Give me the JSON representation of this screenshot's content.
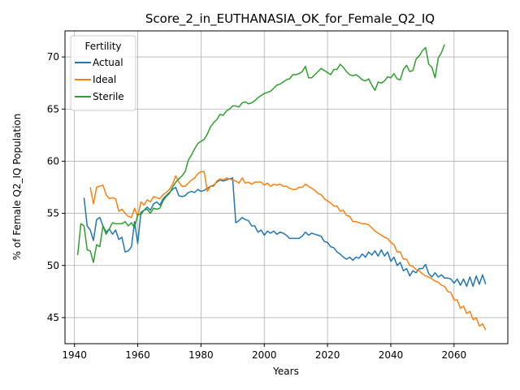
{
  "chart_data": {
    "type": "line",
    "title": "Score_2_in_EUTHANASIA_OK_for_Female_Q2_IQ",
    "xlabel": "Years",
    "ylabel": "% of Female Q2_IQ Population",
    "xlim": [
      1937,
      2077
    ],
    "ylim": [
      42.5,
      72.5
    ],
    "xticks": [
      1940,
      1960,
      1980,
      2000,
      2020,
      2040,
      2060
    ],
    "yticks": [
      45,
      50,
      55,
      60,
      65,
      70
    ],
    "grid": true,
    "legend": {
      "title": "Fertility",
      "placement": "top-left"
    },
    "series": [
      {
        "name": "Actual",
        "color": "#1f77b4",
        "x": [
          1943,
          1944,
          1945,
          1946,
          1947,
          1948,
          1949,
          1950,
          1951,
          1952,
          1953,
          1954,
          1955,
          1956,
          1957,
          1958,
          1959,
          1960,
          1961,
          1962,
          1963,
          1964,
          1965,
          1966,
          1967,
          1968,
          1969,
          1970,
          1971,
          1972,
          1973,
          1974,
          1975,
          1976,
          1977,
          1978,
          1979,
          1980,
          1981,
          1982,
          1983,
          1984,
          1985,
          1986,
          1987,
          1988,
          1989,
          1990,
          1991,
          1992,
          1993,
          1994,
          1995,
          1996,
          1997,
          1998,
          1999,
          2000,
          2001,
          2002,
          2003,
          2004,
          2005,
          2006,
          2007,
          2008,
          2009,
          2010,
          2011,
          2012,
          2013,
          2014,
          2015,
          2016,
          2017,
          2018,
          2019,
          2020,
          2021,
          2022,
          2023,
          2024,
          2025,
          2026,
          2027,
          2028,
          2029,
          2030,
          2031,
          2032,
          2033,
          2034,
          2035,
          2036,
          2037,
          2038,
          2039,
          2040,
          2041,
          2042,
          2043,
          2044,
          2045,
          2046,
          2047,
          2048,
          2049,
          2050,
          2051,
          2052,
          2053,
          2054,
          2055,
          2056,
          2057,
          2058,
          2059,
          2060,
          2061,
          2062,
          2063,
          2064,
          2065,
          2066,
          2067,
          2068,
          2069,
          2070
        ],
        "y": [
          56.5,
          53.8,
          53.4,
          52.4,
          54.4,
          54.6,
          53.8,
          53.2,
          53.5,
          53.0,
          53.4,
          52.5,
          52.7,
          51.3,
          51.4,
          51.8,
          54.2,
          52.1,
          55.1,
          55.3,
          55.6,
          55.3,
          55.9,
          56.1,
          55.8,
          56.4,
          56.7,
          57.0,
          57.3,
          57.5,
          56.7,
          56.6,
          56.7,
          57.0,
          57.1,
          57.0,
          57.3,
          57.1,
          57.2,
          57.4,
          57.6,
          57.7,
          58.0,
          58.2,
          58.1,
          58.2,
          58.3,
          58.4,
          54.1,
          54.3,
          54.6,
          54.4,
          54.3,
          53.8,
          53.8,
          53.2,
          53.4,
          52.9,
          53.3,
          53.1,
          53.3,
          53.0,
          53.2,
          53.1,
          52.9,
          52.6,
          52.6,
          52.6,
          52.6,
          52.8,
          53.2,
          52.9,
          53.1,
          53.0,
          52.9,
          52.8,
          52.3,
          52.2,
          51.8,
          51.7,
          51.3,
          51.1,
          50.8,
          50.6,
          50.8,
          50.5,
          50.8,
          50.7,
          51.1,
          50.8,
          51.3,
          51.0,
          51.4,
          50.9,
          51.5,
          50.9,
          51.3,
          50.4,
          50.8,
          50.0,
          50.3,
          49.5,
          49.7,
          49.0,
          49.5,
          49.3,
          49.7,
          49.7,
          50.1,
          49.2,
          48.9,
          49.3,
          48.9,
          49.1,
          48.8,
          48.8,
          48.7,
          48.3,
          48.7,
          48.1,
          48.7,
          48.0,
          48.9,
          48.0,
          49.0,
          48.2,
          49.1,
          48.2
        ]
      },
      {
        "name": "Ideal",
        "color": "#ff7f0e",
        "x": [
          1945,
          1946,
          1947,
          1948,
          1949,
          1950,
          1951,
          1952,
          1953,
          1954,
          1955,
          1956,
          1957,
          1958,
          1959,
          1960,
          1961,
          1962,
          1963,
          1964,
          1965,
          1966,
          1967,
          1968,
          1969,
          1970,
          1971,
          1972,
          1973,
          1974,
          1975,
          1976,
          1977,
          1978,
          1979,
          1980,
          1981,
          1982,
          1983,
          1984,
          1985,
          1986,
          1987,
          1988,
          1989,
          1990,
          1991,
          1992,
          1993,
          1994,
          1995,
          1996,
          1997,
          1998,
          1999,
          2000,
          2001,
          2002,
          2003,
          2004,
          2005,
          2006,
          2007,
          2008,
          2009,
          2010,
          2011,
          2012,
          2013,
          2014,
          2015,
          2016,
          2017,
          2018,
          2019,
          2020,
          2021,
          2022,
          2023,
          2024,
          2025,
          2026,
          2027,
          2028,
          2029,
          2030,
          2031,
          2032,
          2033,
          2034,
          2035,
          2036,
          2037,
          2038,
          2039,
          2040,
          2041,
          2042,
          2043,
          2044,
          2045,
          2046,
          2047,
          2048,
          2049,
          2050,
          2051,
          2052,
          2053,
          2054,
          2055,
          2056,
          2057,
          2058,
          2059,
          2060,
          2061,
          2062,
          2063,
          2064,
          2065,
          2066,
          2067,
          2068,
          2069,
          2070
        ],
        "y": [
          57.5,
          55.9,
          57.5,
          57.6,
          57.7,
          56.8,
          56.4,
          56.5,
          56.4,
          55.2,
          55.4,
          55.0,
          54.7,
          54.6,
          55.5,
          54.7,
          56.1,
          55.8,
          56.3,
          56.1,
          56.6,
          56.5,
          56.4,
          56.8,
          57.0,
          57.3,
          57.8,
          58.6,
          58.0,
          57.6,
          57.6,
          57.9,
          58.2,
          58.4,
          58.8,
          59.0,
          59.0,
          57.1,
          57.6,
          57.6,
          58.1,
          58.3,
          58.2,
          58.4,
          58.3,
          58.2,
          58.1,
          57.9,
          58.4,
          57.9,
          58.0,
          57.8,
          58.0,
          58.0,
          58.0,
          57.7,
          57.9,
          57.6,
          57.8,
          57.7,
          57.8,
          57.6,
          57.6,
          57.4,
          57.3,
          57.3,
          57.5,
          57.5,
          57.8,
          57.6,
          57.4,
          57.2,
          56.9,
          56.8,
          56.4,
          56.2,
          56.0,
          55.7,
          55.7,
          55.2,
          55.3,
          54.8,
          54.7,
          54.2,
          54.2,
          54.1,
          54.0,
          54.0,
          53.9,
          53.6,
          53.3,
          53.1,
          52.9,
          52.7,
          52.6,
          52.2,
          52.0,
          51.3,
          51.3,
          50.6,
          50.6,
          50.0,
          49.9,
          49.6,
          49.5,
          49.2,
          49.0,
          48.9,
          48.7,
          48.5,
          48.4,
          48.1,
          48.0,
          47.5,
          47.4,
          46.7,
          46.7,
          45.9,
          46.1,
          45.4,
          45.6,
          44.8,
          45.0,
          44.2,
          44.4,
          43.8
        ]
      },
      {
        "name": "Sterile",
        "color": "#2ca02c",
        "x": [
          1941,
          1942,
          1943,
          1944,
          1945,
          1946,
          1947,
          1948,
          1949,
          1950,
          1951,
          1952,
          1953,
          1954,
          1955,
          1956,
          1957,
          1958,
          1959,
          1960,
          1961,
          1962,
          1963,
          1964,
          1965,
          1966,
          1967,
          1968,
          1969,
          1970,
          1971,
          1972,
          1973,
          1974,
          1975,
          1976,
          1977,
          1978,
          1979,
          1980,
          1981,
          1982,
          1983,
          1984,
          1985,
          1986,
          1987,
          1988,
          1989,
          1990,
          1991,
          1992,
          1993,
          1994,
          1995,
          1996,
          1997,
          1998,
          1999,
          2000,
          2001,
          2002,
          2003,
          2004,
          2005,
          2006,
          2007,
          2008,
          2009,
          2010,
          2011,
          2012,
          2013,
          2014,
          2015,
          2016,
          2017,
          2018,
          2019,
          2020,
          2021,
          2022,
          2023,
          2024,
          2025,
          2026,
          2027,
          2028,
          2029,
          2030,
          2031,
          2032,
          2033,
          2034,
          2035,
          2036,
          2037,
          2038,
          2039,
          2040,
          2041,
          2042,
          2043,
          2044,
          2045,
          2046,
          2047,
          2048,
          2049,
          2050,
          2051,
          2052,
          2053,
          2054,
          2055,
          2056,
          2057
        ],
        "y": [
          51.0,
          54.0,
          53.8,
          51.5,
          51.4,
          50.3,
          52.0,
          51.8,
          53.8,
          53.0,
          53.5,
          54.1,
          54.0,
          54.0,
          54.0,
          54.2,
          53.8,
          54.1,
          53.6,
          54.9,
          54.9,
          55.3,
          55.4,
          55.0,
          55.5,
          55.4,
          55.5,
          56.2,
          56.6,
          56.9,
          57.5,
          58.0,
          58.3,
          58.6,
          59.0,
          60.1,
          60.6,
          61.2,
          61.7,
          61.9,
          62.1,
          62.6,
          63.3,
          63.7,
          64.0,
          64.5,
          64.4,
          64.8,
          65.0,
          65.3,
          65.3,
          65.2,
          65.6,
          65.7,
          65.5,
          65.6,
          65.8,
          66.1,
          66.3,
          66.5,
          66.6,
          66.7,
          67.0,
          67.3,
          67.4,
          67.6,
          67.8,
          67.9,
          68.3,
          68.3,
          68.4,
          68.6,
          69.1,
          68.0,
          68.0,
          68.3,
          68.6,
          68.9,
          68.7,
          68.5,
          68.3,
          68.8,
          68.8,
          69.3,
          69.0,
          68.6,
          68.3,
          68.2,
          68.3,
          68.1,
          67.8,
          67.7,
          67.9,
          67.3,
          66.8,
          67.6,
          67.5,
          67.7,
          68.1,
          68.0,
          68.4,
          67.9,
          67.8,
          68.8,
          69.2,
          68.6,
          68.7,
          69.8,
          70.1,
          70.6,
          70.9,
          69.3,
          69.0,
          68.0,
          69.9,
          70.4,
          71.2
        ]
      }
    ]
  }
}
